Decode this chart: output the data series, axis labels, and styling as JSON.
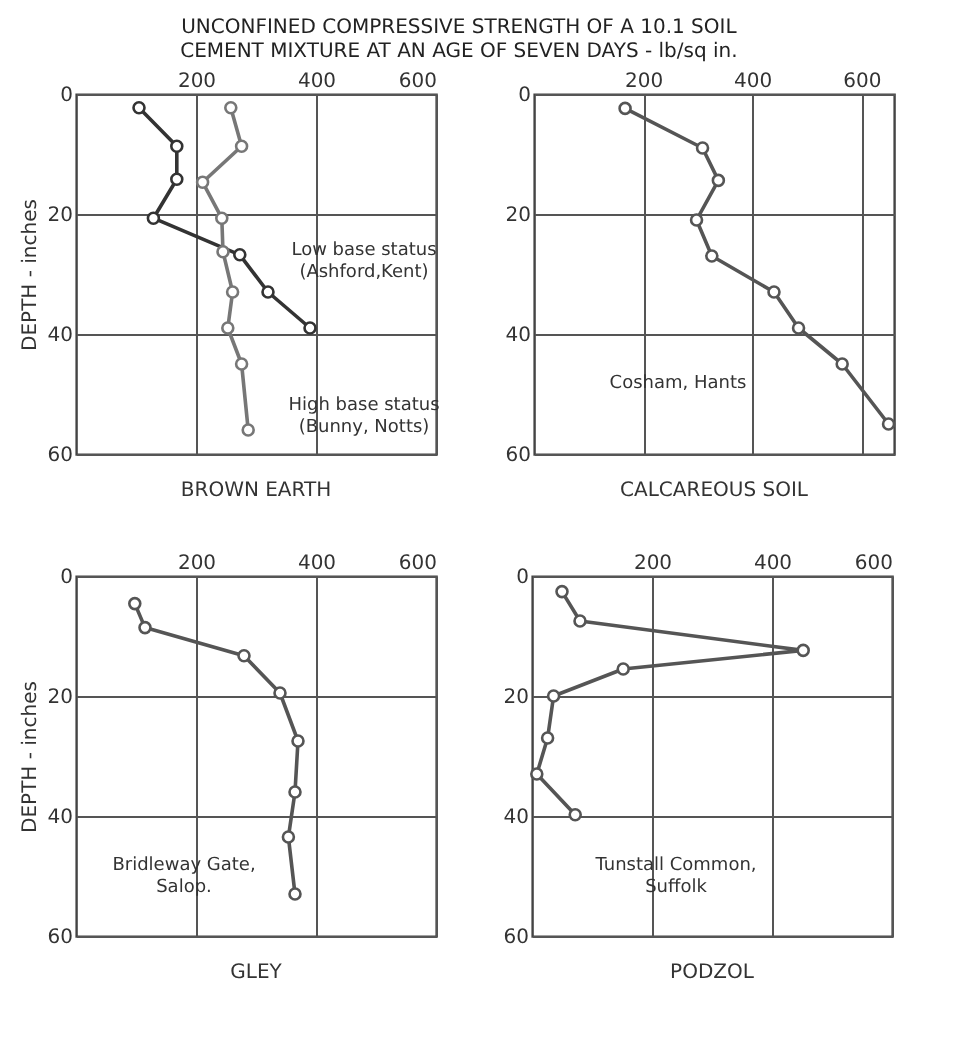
{
  "chart_data": [
    {
      "type": "line",
      "title": "BROWN EARTH",
      "xlabel": "UNCONFINED COMPRESSIVE STRENGTH OF A 10.1 SOIL CEMENT MIXTURE AT AN AGE OF SEVEN DAYS - lb/sq in.",
      "ylabel": "DEPTH - inches",
      "xlim": [
        0,
        600
      ],
      "xticks": [
        200,
        400,
        600
      ],
      "ylim": [
        60,
        0
      ],
      "yticks": [
        0,
        20,
        40,
        60
      ],
      "grid": true,
      "marker": "circle",
      "series": [
        {
          "name": "Low base status (Ashford,Kent)",
          "color": "#333333",
          "x": [
            105,
            168,
            168,
            129,
            273,
            320,
            390
          ],
          "values": [
            2.3,
            8.7,
            14.2,
            20.7,
            26.8,
            33,
            39
          ]
        },
        {
          "name": "High base status (Bunny, Notts)",
          "color": "#777777",
          "x": [
            258,
            276,
            211,
            243,
            245,
            261,
            253,
            276,
            287
          ],
          "values": [
            2.3,
            8.7,
            14.7,
            20.7,
            26.3,
            33,
            39,
            45,
            56
          ]
        }
      ]
    },
    {
      "type": "line",
      "title": "CALCAREOUS SOIL",
      "xlim": [
        0,
        660
      ],
      "xticks": [
        200,
        400,
        600
      ],
      "ylim": [
        60,
        0
      ],
      "yticks": [
        0,
        20,
        40,
        60
      ],
      "grid": true,
      "marker": "circle",
      "series": [
        {
          "name": "Cosham, Hants",
          "color": "#555555",
          "x": [
            167,
            309,
            338,
            298,
            326,
            440,
            485,
            565,
            650
          ],
          "values": [
            2.4,
            9,
            14.4,
            21,
            27,
            33,
            39,
            45,
            55
          ]
        }
      ]
    },
    {
      "type": "line",
      "title": "GLEY",
      "ylabel": "DEPTH - inches",
      "xlim": [
        0,
        600
      ],
      "xticks": [
        200,
        400,
        600
      ],
      "ylim": [
        60,
        0
      ],
      "yticks": [
        0,
        20,
        40,
        60
      ],
      "grid": true,
      "marker": "circle",
      "series": [
        {
          "name": "Bridleway Gate, Salop.",
          "color": "#555555",
          "x": [
            98,
            115,
            280,
            340,
            370,
            365,
            354,
            365
          ],
          "values": [
            4.6,
            8.6,
            13.3,
            19.5,
            27.5,
            36,
            43.5,
            53
          ]
        }
      ]
    },
    {
      "type": "line",
      "title": "PODZOL",
      "xlim": [
        0,
        600
      ],
      "xticks": [
        200,
        400,
        600
      ],
      "ylim": [
        60,
        0
      ],
      "yticks": [
        0,
        20,
        40,
        60
      ],
      "grid": true,
      "marker": "circle",
      "series": [
        {
          "name": "Tunstall Common, Suffolk",
          "color": "#555555",
          "x": [
            50,
            80,
            452,
            152,
            36,
            26,
            8,
            72
          ],
          "values": [
            2.6,
            7.5,
            12.4,
            15.5,
            20,
            27,
            33,
            39.8
          ]
        }
      ]
    }
  ]
}
